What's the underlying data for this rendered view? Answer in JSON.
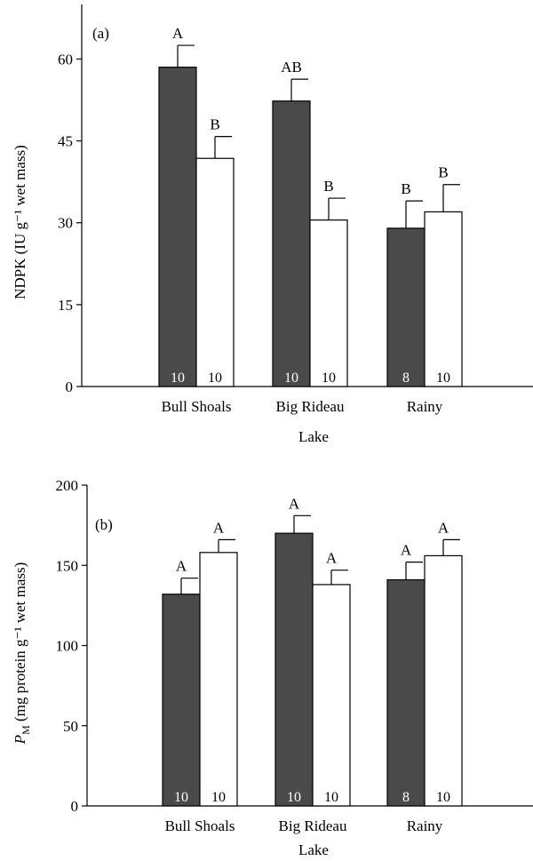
{
  "colors": {
    "dark_bar": "#4a4a4a",
    "light_bar": "#ffffff",
    "n_label_on_dark": "#ffffff",
    "n_label_on_light": "#000000"
  },
  "chart_data": [
    {
      "type": "bar",
      "panel": "(a)",
      "title": "",
      "xlabel": "Lake",
      "ylabel": "NDPK (IU g⁻¹ wet mass)",
      "ylim": [
        0,
        70
      ],
      "yticks": [
        0,
        15,
        30,
        45,
        60
      ],
      "grid": false,
      "categories": [
        "Bull Shoals",
        "Big Rideau",
        "Rainy"
      ],
      "series": [
        {
          "values": [
            58.5,
            52.3,
            29.0
          ],
          "errors": [
            4.0,
            4.0,
            5.0
          ],
          "letters": [
            "A",
            "AB",
            "B"
          ],
          "n": [
            "10",
            "10",
            "8"
          ]
        },
        {
          "values": [
            41.8,
            30.5,
            32.0
          ],
          "errors": [
            4.0,
            4.0,
            5.0
          ],
          "letters": [
            "B",
            "B",
            "B"
          ],
          "n": [
            "10",
            "10",
            "10"
          ]
        }
      ]
    },
    {
      "type": "bar",
      "panel": "(b)",
      "title": "",
      "xlabel": "Lake",
      "ylabel_main": "P",
      "ylabel_sub": "M",
      "ylabel_rest": " (mg protein g⁻¹ wet mass)",
      "ylim": [
        0,
        200
      ],
      "yticks": [
        0,
        50,
        100,
        150,
        200
      ],
      "grid": false,
      "categories": [
        "Bull Shoals",
        "Big Rideau",
        "Rainy"
      ],
      "series": [
        {
          "values": [
            132,
            170,
            141
          ],
          "errors": [
            10,
            11,
            11
          ],
          "letters": [
            "A",
            "A",
            "A"
          ],
          "n": [
            "10",
            "10",
            "8"
          ]
        },
        {
          "values": [
            158,
            138,
            156
          ],
          "errors": [
            8,
            9,
            10
          ],
          "letters": [
            "A",
            "A",
            "A"
          ],
          "n": [
            "10",
            "10",
            "10"
          ]
        }
      ]
    }
  ]
}
